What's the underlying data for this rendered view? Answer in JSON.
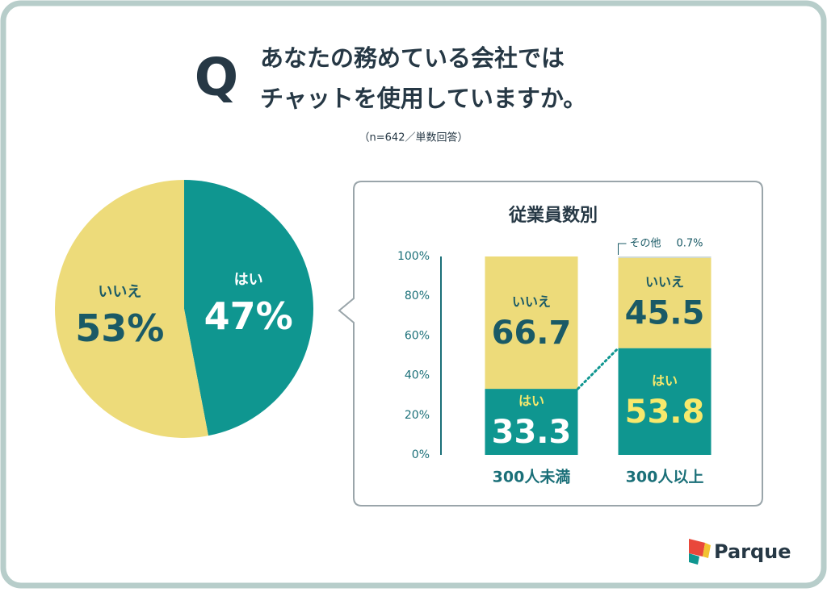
{
  "header": {
    "q": "Q",
    "title_lines": [
      "あなたの務めている会社では",
      "チャットを使用していますか。"
    ],
    "note": "（n=642／単数回答）"
  },
  "chart_data": [
    {
      "type": "pie",
      "categories": [
        "はい",
        "いいえ"
      ],
      "values": [
        47,
        53
      ],
      "value_labels": [
        "47%",
        "53%"
      ],
      "colors": [
        "#0f9690",
        "#eddb7a"
      ]
    },
    {
      "type": "stacked_bar",
      "title": "従業員数別",
      "categories": [
        "300人未満",
        "300人以上"
      ],
      "series": [
        {
          "name": "はい",
          "color": "#0f9690",
          "values": [
            33.3,
            53.8
          ]
        },
        {
          "name": "いいえ",
          "color": "#eddb7a",
          "values": [
            66.7,
            45.5
          ]
        },
        {
          "name": "その他",
          "color": "#c9d6d5",
          "values": [
            null,
            0.7
          ],
          "value_labels": [
            null,
            "0.7%"
          ]
        }
      ],
      "ylim": [
        0,
        100
      ],
      "yticks": [
        {
          "value": 0,
          "label": "0%"
        },
        {
          "value": 20,
          "label": "20%"
        },
        {
          "value": 40,
          "label": "40%"
        },
        {
          "value": 60,
          "label": "60%"
        },
        {
          "value": 80,
          "label": "80%"
        },
        {
          "value": 100,
          "label": "100%"
        }
      ]
    }
  ],
  "brand": "Parque"
}
